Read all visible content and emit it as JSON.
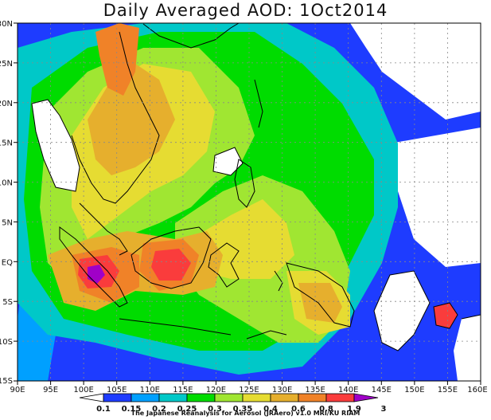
{
  "title": "Daily Averaged AOD: 1Oct2014",
  "credit": "The Japanese Reanalysis for Aerosol (JRAero) v1.0 MRI/KU RIAM",
  "map": {
    "lon_labels": [
      "90E",
      "95E",
      "100E",
      "105E",
      "110E",
      "115E",
      "120E",
      "125E",
      "130E",
      "135E",
      "140E",
      "145E",
      "150E",
      "155E",
      "160E"
    ],
    "lat_labels": [
      "30N",
      "25N",
      "20N",
      "15N",
      "10N",
      "5N",
      "EQ",
      "5S",
      "10S",
      "15S"
    ]
  },
  "colorbar": {
    "levels": [
      "0.1",
      "0.15",
      "0.2",
      "0.25",
      "0.3",
      "0.35",
      "0.4",
      "0.6",
      "0.8",
      "1.9",
      "3"
    ],
    "colors": [
      "#ffffff",
      "#1e3cff",
      "#00a0ff",
      "#00c8c8",
      "#00dc00",
      "#a0e632",
      "#e6dc32",
      "#e6af2d",
      "#f08228",
      "#fa3c3c",
      "#a000c8"
    ]
  }
}
